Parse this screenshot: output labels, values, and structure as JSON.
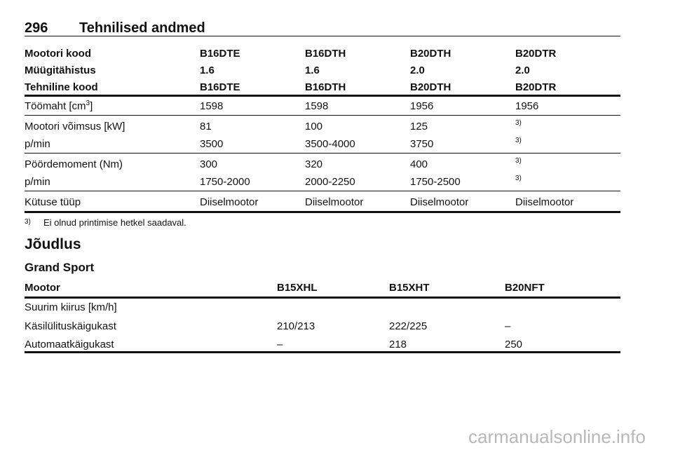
{
  "header": {
    "page_number": "296",
    "title": "Tehnilised andmed"
  },
  "table1": {
    "header_rows": [
      [
        "Mootori kood",
        "B16DTE",
        "B16DTH",
        "B20DTH",
        "B20DTR"
      ],
      [
        "Müügitähistus",
        "1.6",
        "1.6",
        "2.0",
        "2.0"
      ],
      [
        "Tehniline kood",
        "B16DTE",
        "B16DTH",
        "B20DTH",
        "B20DTR"
      ]
    ],
    "groups": [
      [
        [
          [
            "Töömaht [cm",
            "3",
            "]"
          ],
          "1598",
          "1598",
          "1956",
          "1956"
        ]
      ],
      [
        [
          "Mootori võimsus [kW]",
          "81",
          "100",
          "125",
          "3)"
        ],
        [
          "p/min",
          "3500",
          "3500-4000",
          "3750",
          "3)"
        ]
      ],
      [
        [
          "Pöördemoment (Nm)",
          "300",
          "320",
          "400",
          "3)"
        ],
        [
          "p/min",
          "1750-2000",
          "2000-2250",
          "1750-2500",
          "3)"
        ]
      ],
      [
        [
          "Kütuse tüüp",
          "Diiselmootor",
          "Diiselmootor",
          "Diiselmootor",
          "Diiselmootor"
        ]
      ]
    ]
  },
  "footnote": {
    "mark": "3)",
    "text": "Ei olnud printimise hetkel saadaval."
  },
  "section_title": "Jõudlus",
  "subsection_title": "Grand Sport",
  "table2": {
    "header": [
      "Mootor",
      "B15XHL",
      "B15XHT",
      "B20NFT"
    ],
    "rows": [
      [
        "Suurim kiirus [km/h]"
      ],
      [
        "Käsilülituskäigukast",
        "210/213",
        "222/225",
        "–"
      ],
      [
        "Automaatkäigukast",
        "–",
        "218",
        "250"
      ]
    ]
  },
  "watermark": "carmanualsonline.info"
}
